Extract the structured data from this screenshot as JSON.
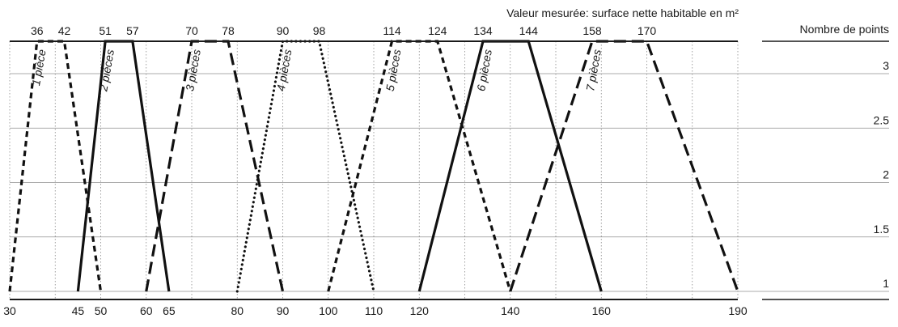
{
  "chart_data": {
    "type": "line",
    "xlabel": "Valeur mesurée: surface nette habitable en m²",
    "ylabel": "Nombre de points",
    "xlim": [
      30,
      190
    ],
    "ylim": [
      0.95,
      3.5
    ],
    "x_ticks_bottom": [
      "30",
      "45",
      "50",
      "60",
      "65",
      "80",
      "90",
      "100",
      "110",
      "120",
      "140",
      "160",
      "190"
    ],
    "x_ticks_top": [
      "36",
      "42",
      "51",
      "57",
      "70",
      "78",
      "90",
      "98",
      "114",
      "124",
      "134",
      "144",
      "158",
      "170"
    ],
    "y_ticks": [
      "1",
      "1.5",
      "2",
      "2.5",
      "3"
    ],
    "grid": true,
    "series": [
      {
        "name": "1 pièce",
        "style": "dash-short",
        "x": [
          30,
          36,
          42,
          50
        ],
        "y": [
          1,
          3.5,
          3.5,
          1
        ]
      },
      {
        "name": "2 pièces",
        "style": "solid",
        "x": [
          45,
          51,
          57,
          65
        ],
        "y": [
          1,
          3.5,
          3.5,
          1
        ]
      },
      {
        "name": "3 pièces",
        "style": "dash-long",
        "x": [
          60,
          70,
          78,
          90
        ],
        "y": [
          1,
          3.5,
          3.5,
          1
        ]
      },
      {
        "name": "4 pièces",
        "style": "dotted",
        "x": [
          80,
          90,
          98,
          110
        ],
        "y": [
          1,
          3.5,
          3.5,
          1
        ]
      },
      {
        "name": "5 pièces",
        "style": "dash-short",
        "x": [
          100,
          114,
          124,
          140
        ],
        "y": [
          1,
          3.5,
          3.5,
          1
        ]
      },
      {
        "name": "6 pièces",
        "style": "solid",
        "x": [
          120,
          134,
          144,
          160
        ],
        "y": [
          1,
          3.5,
          3.5,
          1
        ]
      },
      {
        "name": "7 pièces",
        "style": "dash-long",
        "x": [
          140,
          158,
          170,
          190
        ],
        "y": [
          1,
          3.5,
          3.5,
          1
        ]
      }
    ]
  }
}
